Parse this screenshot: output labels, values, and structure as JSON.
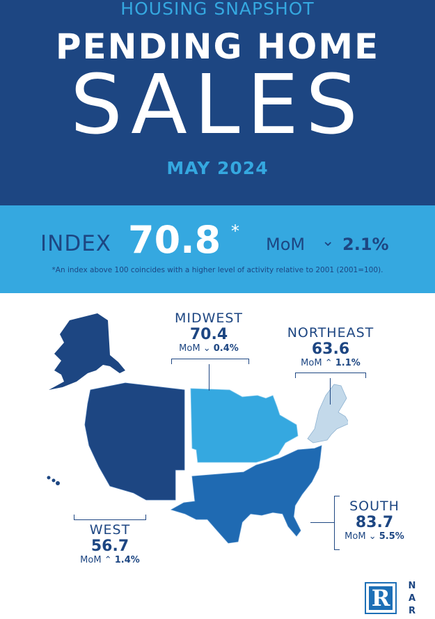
{
  "header": {
    "kicker": "HOUSING SNAPSHOT",
    "title_line1": "PENDING HOME",
    "title_line2": "SALES",
    "period": "MAY 2024"
  },
  "index": {
    "label": "INDEX",
    "value": "70.8",
    "asterisk": "*",
    "mom_label": "MoM",
    "mom_direction": "down",
    "mom_value": "2.1%",
    "footnote": "*An index above 100 coincides with a higher level of activity relative to 2001 (2001=100)."
  },
  "regions": {
    "midwest": {
      "name": "MIDWEST",
      "value": "70.4",
      "mom_label": "MoM",
      "mom_direction": "down",
      "mom_value": "0.4%",
      "color": "#35a8e0"
    },
    "northeast": {
      "name": "NORTHEAST",
      "value": "63.6",
      "mom_label": "MoM",
      "mom_direction": "up",
      "mom_value": "1.1%",
      "color": "#c3d9ea"
    },
    "south": {
      "name": "SOUTH",
      "value": "83.7",
      "mom_label": "MoM",
      "mom_direction": "down",
      "mom_value": "5.5%",
      "color": "#1f6ab2"
    },
    "west": {
      "name": "WEST",
      "value": "56.7",
      "mom_label": "MoM",
      "mom_direction": "up",
      "mom_value": "1.4%",
      "color": "#1d4682"
    }
  },
  "logo": {
    "mark": "R",
    "text": [
      "N",
      "A",
      "R"
    ]
  },
  "colors": {
    "navy": "#1d4682",
    "sky": "#35a8e0",
    "white": "#ffffff"
  },
  "icons": {
    "down": "chevron-down-icon",
    "up": "chevron-up-icon"
  }
}
